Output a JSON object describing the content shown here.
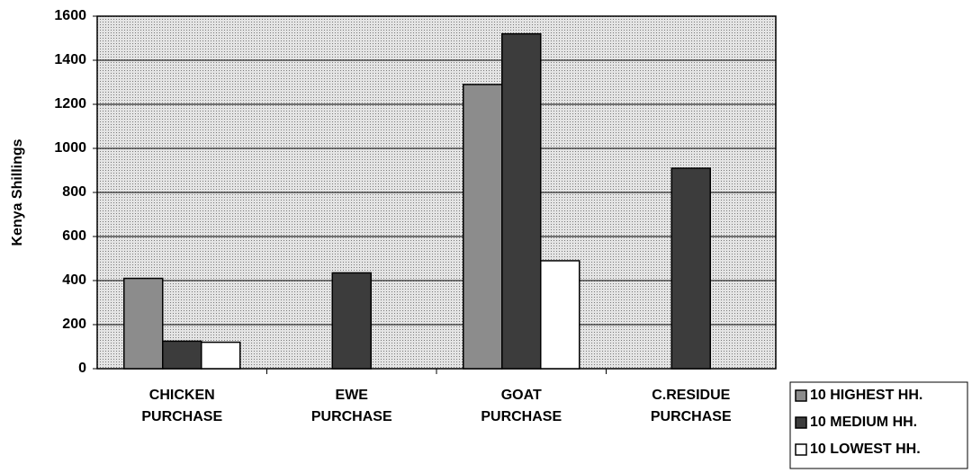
{
  "chart_data": {
    "type": "bar",
    "y_label": "Kenya Shillings",
    "categories": [
      "CHICKEN PURCHASE",
      "EWE PURCHASE",
      "GOAT PURCHASE",
      "C.RESIDUE PURCHASE"
    ],
    "series": [
      {
        "name": "10 HIGHEST HH.",
        "color": "#8c8c8c",
        "values": [
          410,
          null,
          1290,
          null
        ]
      },
      {
        "name": "10 MEDIUM HH.",
        "color": "#3c3c3c",
        "values": [
          125,
          435,
          1520,
          910
        ]
      },
      {
        "name": "10 LOWEST HH.",
        "color": "#ffffff",
        "values": [
          120,
          null,
          490,
          null
        ]
      }
    ],
    "ylim": [
      0,
      1600
    ],
    "yticks": [
      0,
      200,
      400,
      600,
      800,
      1000,
      1200,
      1400,
      1600
    ],
    "grid": true,
    "legend": "bottom-right"
  }
}
